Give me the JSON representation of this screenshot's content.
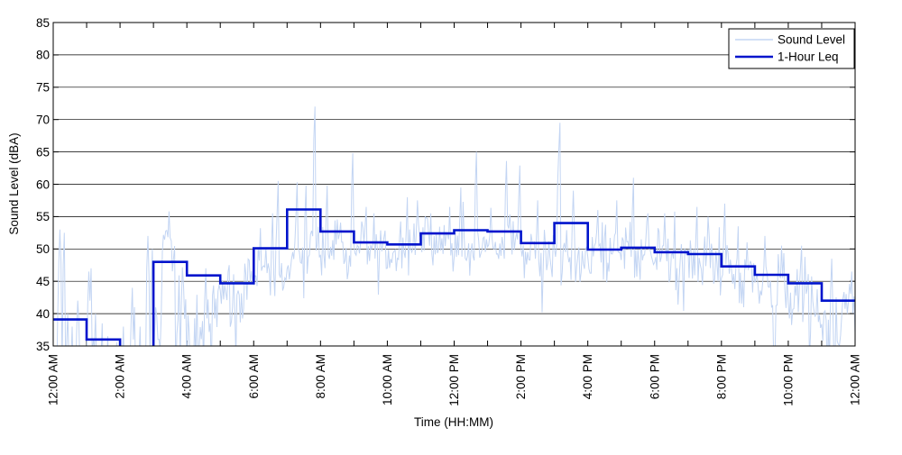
{
  "figure": {
    "background": "#ffffff",
    "axis_color": "#000000",
    "grid_color": "#000000"
  },
  "chart_data": {
    "type": "line",
    "title": "",
    "xlabel": "Time (HH:MM)",
    "ylabel": "Sound Level (dBA)",
    "x_unit": "hours after 12:00 AM",
    "xlim": [
      0,
      24
    ],
    "ylim": [
      35,
      85
    ],
    "yticks": [
      35,
      40,
      45,
      50,
      55,
      60,
      65,
      70,
      75,
      80,
      85
    ],
    "xticks": [
      {
        "hour": 0,
        "label": "12:00 AM"
      },
      {
        "hour": 2,
        "label": "2:00 AM"
      },
      {
        "hour": 4,
        "label": "4:00 AM"
      },
      {
        "hour": 6,
        "label": "6:00 AM"
      },
      {
        "hour": 8,
        "label": "8:00 AM"
      },
      {
        "hour": 10,
        "label": "10:00 AM"
      },
      {
        "hour": 12,
        "label": "12:00 PM"
      },
      {
        "hour": 14,
        "label": "2:00 PM"
      },
      {
        "hour": 16,
        "label": "4:00 PM"
      },
      {
        "hour": 18,
        "label": "6:00 PM"
      },
      {
        "hour": 20,
        "label": "8:00 PM"
      },
      {
        "hour": 22,
        "label": "10:00 PM"
      },
      {
        "hour": 24,
        "label": "12:00 AM"
      }
    ],
    "minor_xtick_interval_hours": 1,
    "grid": "horizontal",
    "legend": {
      "position": "top-right",
      "entries": [
        "Sound Level",
        "1-Hour Leq"
      ]
    },
    "series": [
      {
        "name": "Sound Level",
        "color": "#c3d5f3",
        "line_width": 1,
        "kind": "noisy-timeseries",
        "sample_interval_minutes": 2,
        "seed": 5,
        "note": "Minute-scale sound level; overnight (12-3 AM) values fall below the 35 dBA axis minimum with sparse spikes; daytime band roughly 45-55 dBA.",
        "envelope_segments": [
          [
            0,
            3,
            31.2,
            2.3,
            0.0
          ],
          [
            3,
            3.25,
            37.0,
            3.5,
            0.1
          ],
          [
            3.25,
            3.65,
            50.2,
            1.4,
            0.02
          ],
          [
            3.65,
            4.0,
            41.0,
            4.5,
            0.15
          ],
          [
            4.0,
            4.7,
            38.5,
            3.2,
            0.22
          ],
          [
            4.7,
            5.7,
            41.5,
            2.9,
            0.05
          ],
          [
            5.7,
            6.0,
            44.5,
            2.5,
            0.01
          ],
          [
            6.0,
            6.5,
            46.5,
            2.4,
            0.0
          ],
          [
            6.5,
            7.0,
            48.0,
            2.3,
            0.0
          ],
          [
            7.0,
            8.0,
            50.3,
            2.3,
            0.0
          ],
          [
            8.0,
            9.0,
            50.2,
            2.3,
            0.0
          ],
          [
            9.0,
            10.0,
            49.8,
            2.3,
            0.0
          ],
          [
            10.0,
            11.0,
            49.5,
            2.2,
            0.0
          ],
          [
            11.0,
            12.0,
            49.9,
            2.2,
            0.0
          ],
          [
            12.0,
            13.0,
            50.2,
            2.3,
            0.0
          ],
          [
            13.0,
            14.0,
            50.2,
            2.3,
            0.0
          ],
          [
            14.0,
            15.0,
            49.3,
            2.3,
            0.0
          ],
          [
            15.0,
            16.0,
            49.7,
            2.4,
            0.0
          ],
          [
            16.0,
            17.0,
            49.2,
            2.2,
            0.0
          ],
          [
            17.0,
            18.0,
            49.2,
            2.3,
            0.0
          ],
          [
            18.0,
            19.0,
            48.2,
            2.3,
            0.0
          ],
          [
            19.0,
            20.0,
            47.7,
            2.5,
            0.0
          ],
          [
            20.0,
            21.0,
            46.0,
            2.6,
            0.01
          ],
          [
            21.0,
            22.0,
            44.3,
            2.6,
            0.02
          ],
          [
            22.0,
            22.8,
            42.0,
            2.9,
            0.06
          ],
          [
            22.8,
            23.6,
            39.0,
            3.2,
            0.2
          ],
          [
            23.6,
            24.0,
            42.5,
            2.6,
            0.05
          ]
        ],
        "spikes": [
          [
            0.17,
            44
          ],
          [
            0.2,
            53
          ],
          [
            0.23,
            48
          ],
          [
            0.33,
            52.5
          ],
          [
            0.42,
            40
          ],
          [
            0.55,
            38
          ],
          [
            0.72,
            42
          ],
          [
            0.78,
            39
          ],
          [
            1.08,
            46.5
          ],
          [
            1.13,
            47
          ],
          [
            1.25,
            40
          ],
          [
            1.45,
            38.5
          ],
          [
            1.62,
            36.5
          ],
          [
            2.1,
            38
          ],
          [
            2.35,
            44
          ],
          [
            2.42,
            41
          ],
          [
            2.6,
            38
          ],
          [
            2.83,
            52
          ],
          [
            2.88,
            46
          ],
          [
            2.95,
            50
          ],
          [
            3.45,
            55.8
          ],
          [
            4.55,
            47
          ],
          [
            5.25,
            47.5
          ],
          [
            6.2,
            53.2
          ],
          [
            6.55,
            55.5
          ],
          [
            6.72,
            60.5
          ],
          [
            7.3,
            60.3
          ],
          [
            7.57,
            59.8
          ],
          [
            7.83,
            72.0
          ],
          [
            8.2,
            59.8
          ],
          [
            8.97,
            64.8
          ],
          [
            9.35,
            56.5
          ],
          [
            9.6,
            55.5
          ],
          [
            10.6,
            58.0
          ],
          [
            10.9,
            57.5
          ],
          [
            11.3,
            55.5
          ],
          [
            11.85,
            56.5
          ],
          [
            12.2,
            59.5
          ],
          [
            12.65,
            65.0
          ],
          [
            13.1,
            56.0
          ],
          [
            13.58,
            63.6
          ],
          [
            13.98,
            62.9
          ],
          [
            14.5,
            57.5
          ],
          [
            15.12,
            65.5
          ],
          [
            15.17,
            69.5
          ],
          [
            15.56,
            59.0
          ],
          [
            16.3,
            56.0
          ],
          [
            16.85,
            57.5
          ],
          [
            17.35,
            61.0
          ],
          [
            17.8,
            55.5
          ],
          [
            18.3,
            55.5
          ],
          [
            19.25,
            56.5
          ],
          [
            19.6,
            55.0
          ],
          [
            20.1,
            57.0
          ],
          [
            20.5,
            53.5
          ],
          [
            21.3,
            52.0
          ],
          [
            21.8,
            50.5
          ],
          [
            22.4,
            50.5
          ],
          [
            23.3,
            48.5
          ],
          [
            23.9,
            46.5
          ]
        ]
      },
      {
        "name": "1-Hour Leq",
        "color": "#0014cc",
        "line_width": 2.6,
        "kind": "step-hourly",
        "hour_start": [
          0,
          1,
          2,
          3,
          4,
          5,
          6,
          7,
          8,
          9,
          10,
          11,
          12,
          13,
          14,
          15,
          16,
          17,
          18,
          19,
          20,
          21,
          22,
          23
        ],
        "values_dBA": [
          39.1,
          36.0,
          33.5,
          48.0,
          45.9,
          44.7,
          50.1,
          56.1,
          52.7,
          51.0,
          50.7,
          52.4,
          52.9,
          52.7,
          50.9,
          54.0,
          49.9,
          50.2,
          49.5,
          49.2,
          47.3,
          46.0,
          44.7,
          42.0
        ],
        "note": "Hour 2 (2:00-3:00 AM) Leq is below the 35 dBA axis minimum and is clipped off-scale."
      }
    ]
  }
}
